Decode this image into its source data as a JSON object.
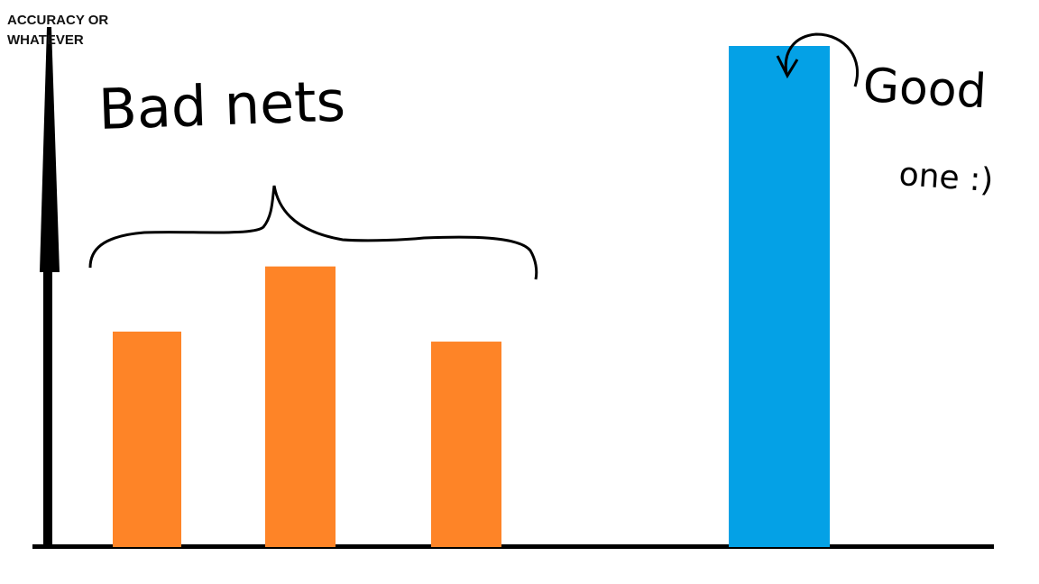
{
  "chart_data": {
    "type": "bar",
    "ylabel": "ACCURACY OR\nWHATEVER",
    "xlabel": "",
    "title": "",
    "ylim": [
      0,
      100
    ],
    "categories": [
      "",
      "",
      "",
      ""
    ],
    "values": [
      43,
      56,
      41,
      100
    ],
    "colors": [
      "#fe8427",
      "#fe8427",
      "#fe8427",
      "#04a1e6"
    ],
    "grid": false,
    "annotations": [
      {
        "text": "Bad nets",
        "target": "bars 1-3"
      },
      {
        "text": "Good",
        "target": "bar 4"
      },
      {
        "text": "one :)",
        "target": "bar 4"
      }
    ]
  }
}
